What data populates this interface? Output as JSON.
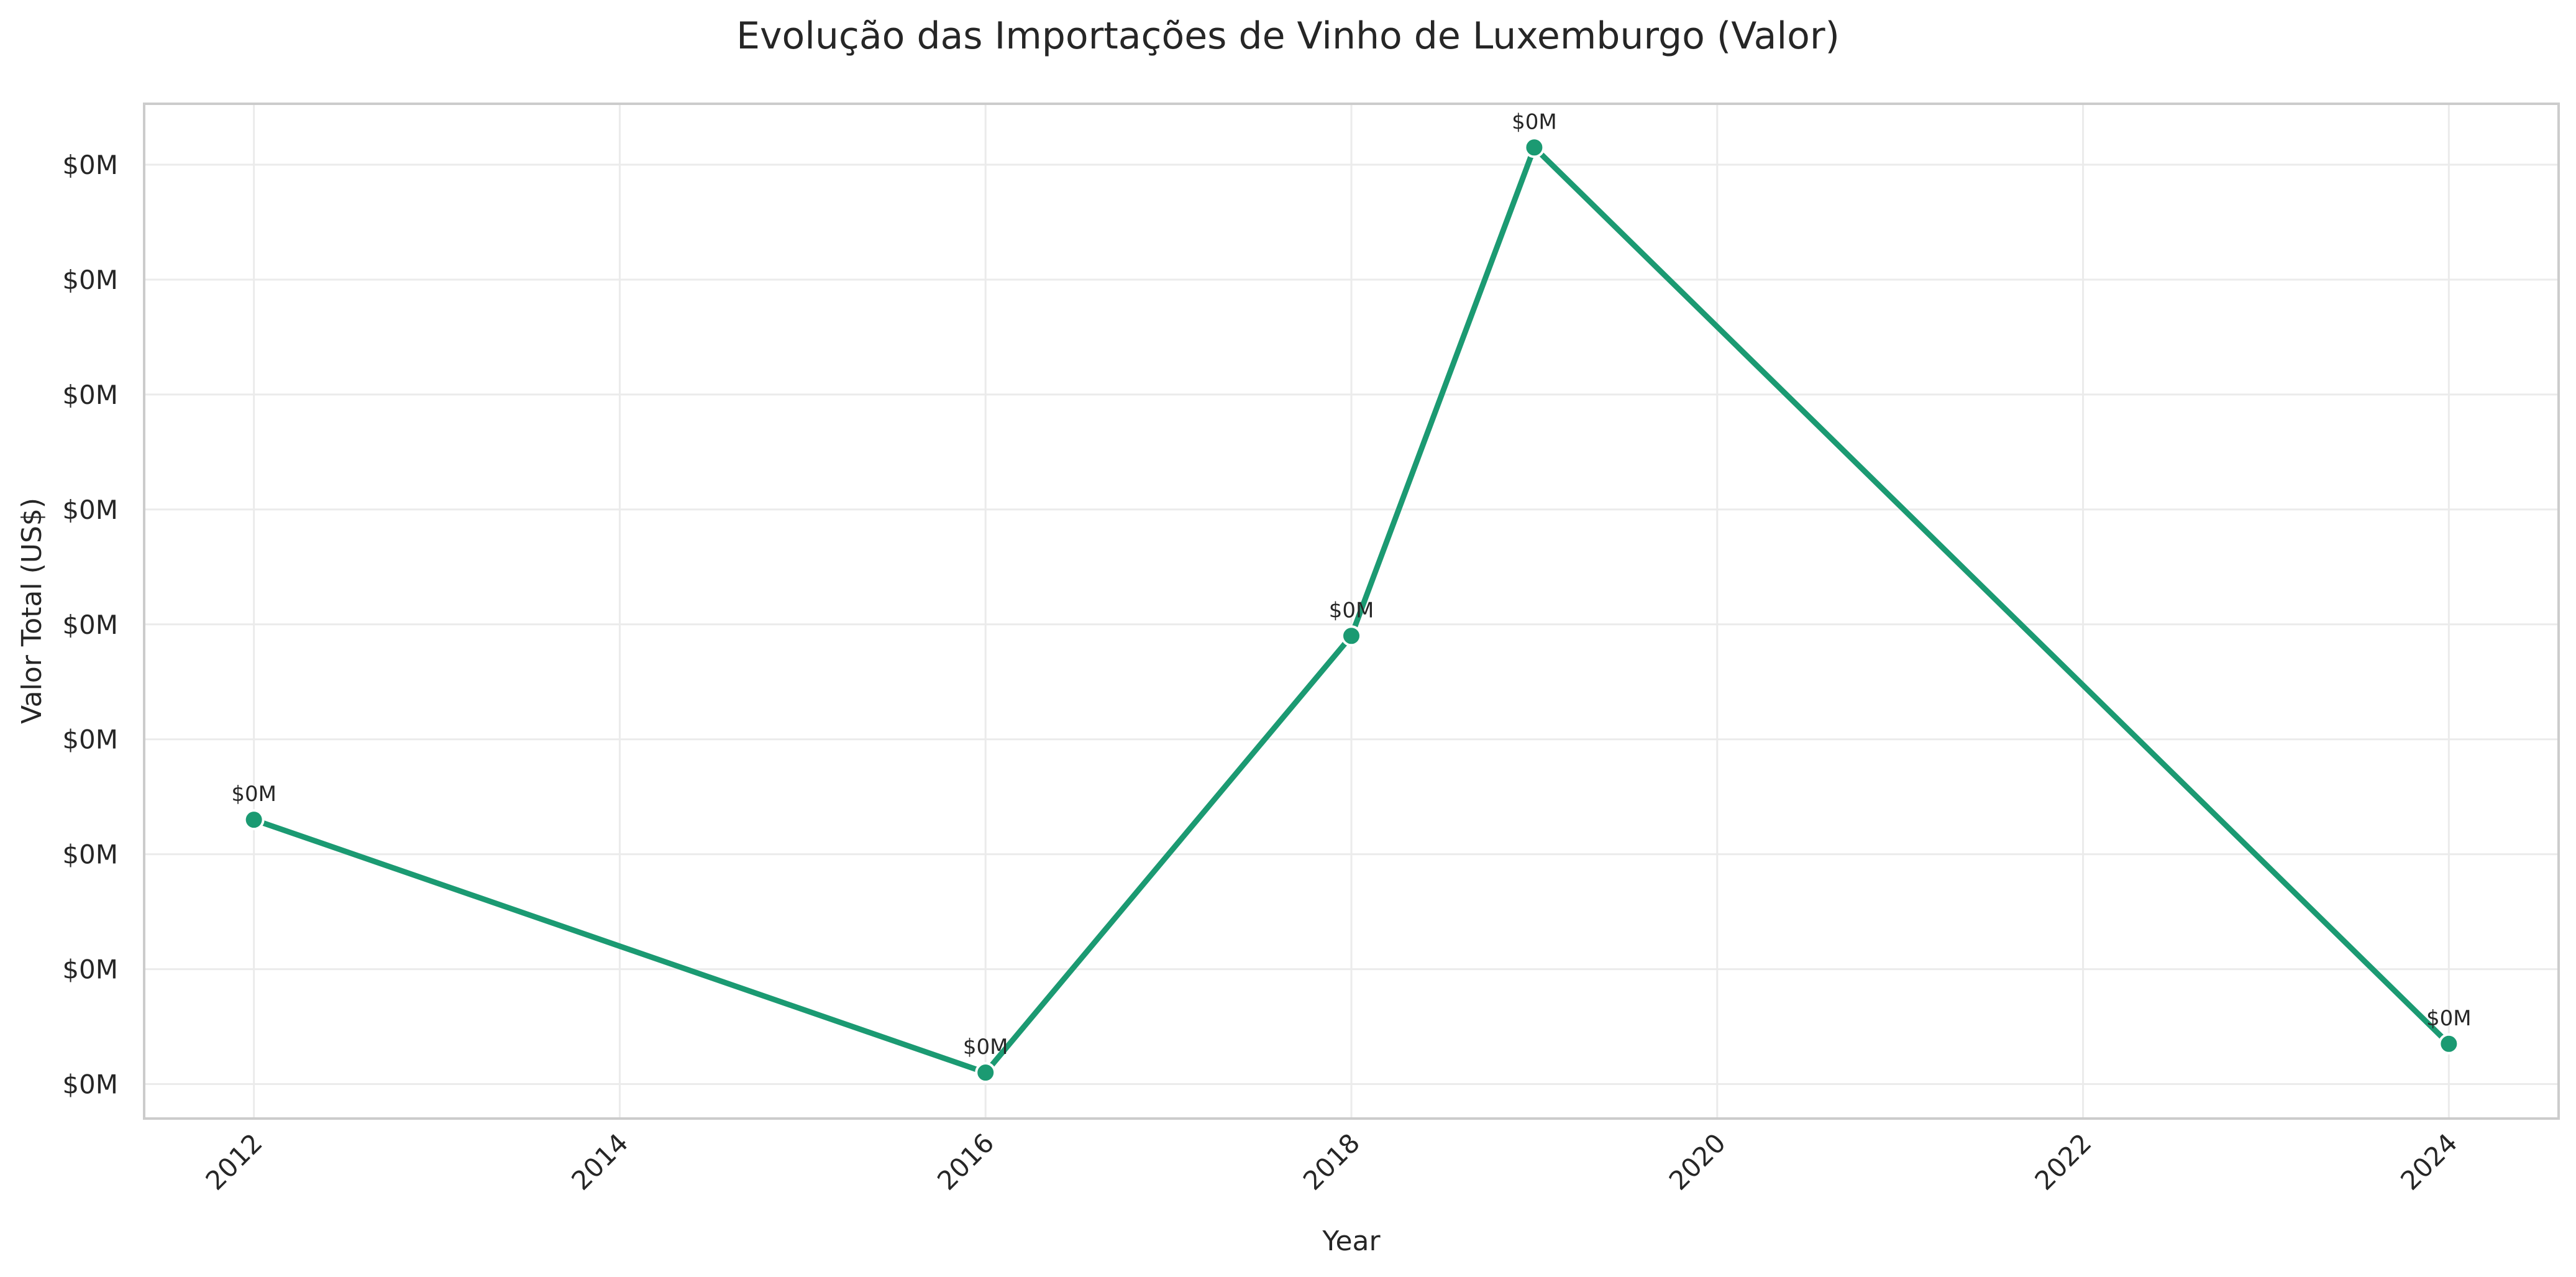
{
  "chart_data": {
    "type": "line",
    "title": "Evolução das Importações de Vinho de Luxemburgo (Valor)",
    "xlabel": "Year",
    "ylabel": "Valor Total (US$)",
    "x": [
      2012,
      2016,
      2018,
      2019,
      2024
    ],
    "series": [
      {
        "values": [
          0.23,
          0.01,
          0.39,
          0.815,
          0.035
        ],
        "labels": [
          "$0M",
          "$0M",
          "$0M",
          "$0M",
          "$0M"
        ]
      }
    ],
    "xticks": [
      2012,
      2014,
      2016,
      2018,
      2020,
      2022,
      2024
    ],
    "yticks": [
      0.0,
      0.1,
      0.2,
      0.3,
      0.4,
      0.5,
      0.6,
      0.7,
      0.8
    ],
    "ytick_labels": [
      "$0M",
      "$0M",
      "$0M",
      "$0M",
      "$0M",
      "$0M",
      "$0M",
      "$0M",
      "$0M"
    ],
    "xlim": [
      2011.4,
      2024.6
    ],
    "ylim": [
      -0.03,
      0.853
    ],
    "grid": true,
    "legend": "none",
    "colors": {
      "line": "#1b9a72",
      "grid": "#ebebeb",
      "frame": "#cccccc",
      "text": "#262626"
    }
  }
}
